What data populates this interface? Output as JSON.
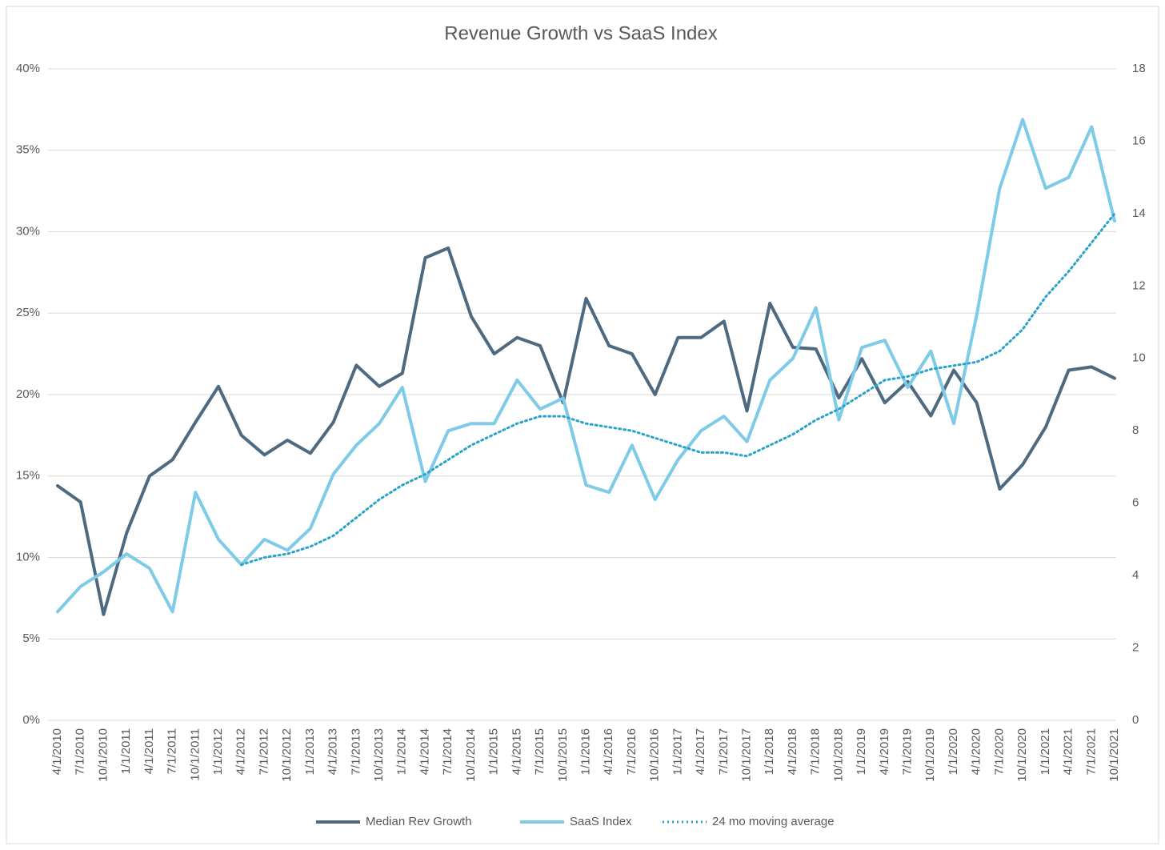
{
  "chart_data": {
    "type": "line",
    "title": "Revenue Growth vs SaaS Index",
    "categories": [
      "4/1/2010",
      "7/1/2010",
      "10/1/2010",
      "1/1/2011",
      "4/1/2011",
      "7/1/2011",
      "10/1/2011",
      "1/1/2012",
      "4/1/2012",
      "7/1/2012",
      "10/1/2012",
      "1/1/2013",
      "4/1/2013",
      "7/1/2013",
      "10/1/2013",
      "1/1/2014",
      "4/1/2014",
      "7/1/2014",
      "10/1/2014",
      "1/1/2015",
      "4/1/2015",
      "7/1/2015",
      "10/1/2015",
      "1/1/2016",
      "4/1/2016",
      "7/1/2016",
      "10/1/2016",
      "1/1/2017",
      "4/1/2017",
      "7/1/2017",
      "10/1/2017",
      "1/1/2018",
      "4/1/2018",
      "7/1/2018",
      "10/1/2018",
      "1/1/2019",
      "4/1/2019",
      "7/1/2019",
      "10/1/2019",
      "1/1/2020",
      "4/1/2020",
      "7/1/2020",
      "10/1/2020",
      "1/1/2021",
      "4/1/2021",
      "7/1/2021",
      "10/1/2021"
    ],
    "ylim": [
      0,
      40
    ],
    "yticks": [
      {
        "value": 0,
        "label": "0%"
      },
      {
        "value": 5,
        "label": "5%"
      },
      {
        "value": 10,
        "label": "10%"
      },
      {
        "value": 15,
        "label": "15%"
      },
      {
        "value": 20,
        "label": "20%"
      },
      {
        "value": 25,
        "label": "25%"
      },
      {
        "value": 30,
        "label": "30%"
      },
      {
        "value": 35,
        "label": "35%"
      },
      {
        "value": 40,
        "label": "40%"
      }
    ],
    "y2lim": [
      0,
      18
    ],
    "y2ticks": [
      0,
      2,
      4,
      6,
      8,
      10,
      12,
      14,
      16,
      18
    ],
    "grid": true,
    "legend": "bottom",
    "series": [
      {
        "name": "Median Rev Growth",
        "color": "#4d6a80",
        "dash": "solid",
        "values": [
          14.4,
          13.4,
          6.5,
          11.5,
          15,
          16,
          18.3,
          20.5,
          17.5,
          16.3,
          17.2,
          16.4,
          18.3,
          21.8,
          20.5,
          21.3,
          28.4,
          29,
          24.8,
          22.5,
          23.5,
          23,
          19.5,
          25.9,
          23,
          22.5,
          20,
          23.5,
          23.5,
          24.5,
          19,
          25.6,
          22.9,
          22.8,
          19.8,
          22.2,
          19.5,
          20.8,
          18.7,
          21.5,
          19.5,
          14.2,
          15.7,
          18,
          21.5,
          21.7,
          21
        ]
      },
      {
        "name": "SaaS Index",
        "color": "#7ecbe8",
        "dash": "solid",
        "axis": "y2",
        "values": [
          3.0,
          3.7,
          4.1,
          4.6,
          4.2,
          3.0,
          6.3,
          5.0,
          4.3,
          5.0,
          4.7,
          5.3,
          6.8,
          7.6,
          8.2,
          9.2,
          6.6,
          8.0,
          8.2,
          8.2,
          9.4,
          8.6,
          8.9,
          6.5,
          6.3,
          7.6,
          6.1,
          7.2,
          8.0,
          8.4,
          7.7,
          9.4,
          10.0,
          11.4,
          8.3,
          10.3,
          10.5,
          9.2,
          10.2,
          8.2,
          11.2,
          14.7,
          16.6,
          14.7,
          15.0,
          16.4,
          13.8
        ]
      },
      {
        "name": "24 mo moving average",
        "color": "#2aa3c9",
        "dash": "dotted",
        "axis": "y2",
        "values": [
          null,
          null,
          null,
          null,
          null,
          null,
          null,
          null,
          4.3,
          4.5,
          4.6,
          4.8,
          5.1,
          5.6,
          6.1,
          6.5,
          6.8,
          7.2,
          7.6,
          7.9,
          8.2,
          8.4,
          8.4,
          8.2,
          8.1,
          8.0,
          7.8,
          7.6,
          7.4,
          7.4,
          7.3,
          7.6,
          7.9,
          8.3,
          8.6,
          9.0,
          9.4,
          9.5,
          9.7,
          9.8,
          9.9,
          10.2,
          10.8,
          11.7,
          12.4,
          13.2,
          14.0
        ]
      }
    ]
  }
}
